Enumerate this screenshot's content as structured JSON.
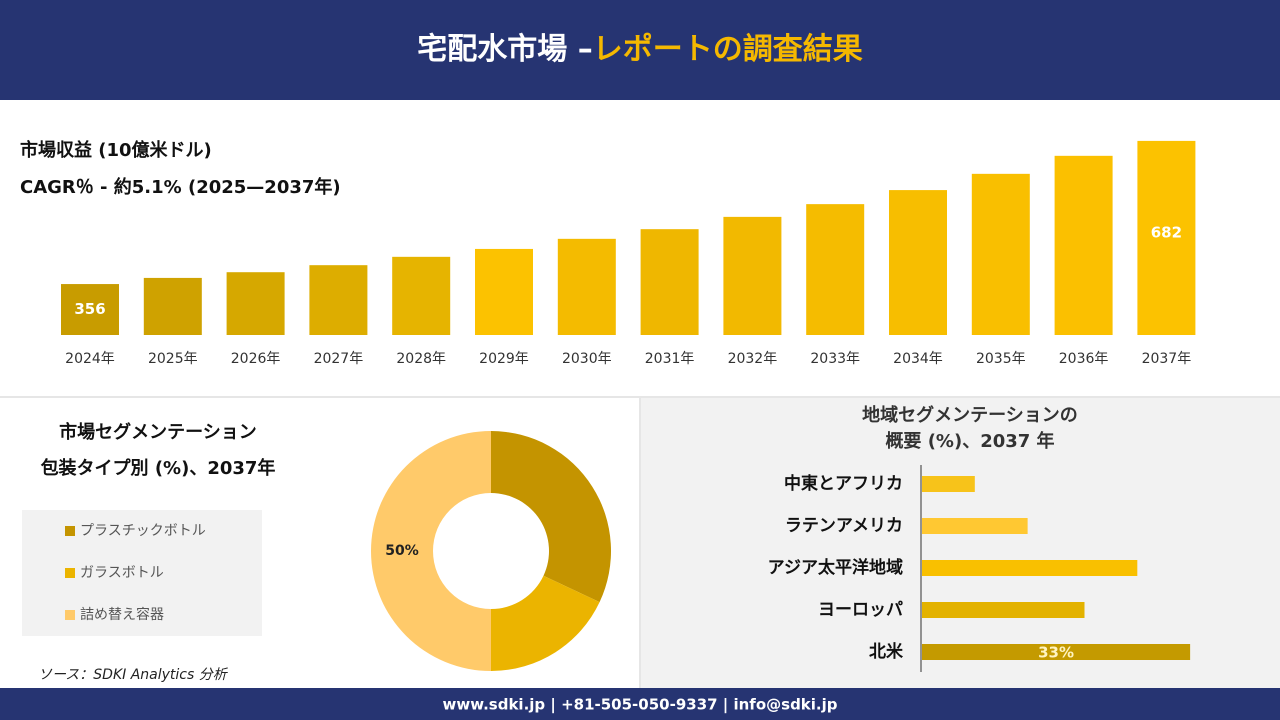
{
  "header": {
    "title": "宅配水市場 –",
    "title_highlight": "レポートの調査結果"
  },
  "chart_data": [
    {
      "type": "bar",
      "title": "市場収益 (10億米ドル)",
      "subtitle": "CAGR％ - 約5.1% (2025—2037年)",
      "categories": [
        "2024年",
        "2025年",
        "2026年",
        "2027年",
        "2028年",
        "2029年",
        "2030年",
        "2031年",
        "2032年",
        "2033年",
        "2034年",
        "2035年",
        "2036年",
        "2037年"
      ],
      "values": [
        356,
        370,
        383,
        399,
        418,
        436,
        459,
        481,
        509,
        538,
        570,
        607,
        648,
        682
      ],
      "colors": [
        "#c89c00",
        "#cfa200",
        "#d6a800",
        "#ddad00",
        "#e6b400",
        "#fcc200",
        "#f4bb00",
        "#efb700",
        "#f2b900",
        "#f5bc00",
        "#f7be00",
        "#f9bf00",
        "#fbc000",
        "#fcc200"
      ],
      "ylim": [
        240,
        700
      ],
      "label_first_last": true
    },
    {
      "type": "donut",
      "title": "市場セグメンテーション",
      "subtitle": "包装タイプ別 (%)、2037年",
      "categories": [
        "プラスチックボトル",
        "ガラスボトル",
        "詰め替え容器"
      ],
      "values": [
        32,
        18,
        50
      ],
      "value_labels": [
        null,
        null,
        "50%"
      ],
      "colors": [
        "#c49400",
        "#ebb400",
        "#ffca6a"
      ]
    },
    {
      "type": "hbar",
      "title": "地域セグメンテーションの",
      "subtitle": "概要 (%)、2037 年",
      "categories": [
        "中東とアフリカ",
        "ラテンアメリカ",
        "アジア太平洋地域",
        "ヨーロッパ",
        "北米"
      ],
      "values": [
        6.5,
        13,
        26.5,
        20,
        33
      ],
      "value_labels": [
        null,
        null,
        null,
        null,
        "33%"
      ],
      "colors": [
        "#f7c31a",
        "#ffc832",
        "#f9c000",
        "#e3b200",
        "#c49a00"
      ],
      "xlim": [
        0,
        40
      ]
    }
  ],
  "source": "ソース：SDKI Analytics 分析",
  "footer": "www.sdki.jp | +81-505-050-9337 | info@sdki.jp"
}
